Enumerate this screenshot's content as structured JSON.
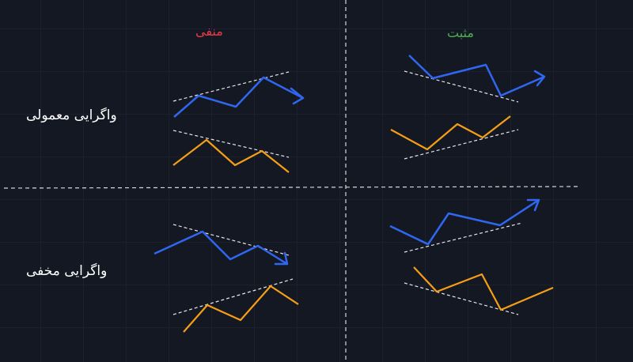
{
  "columns": {
    "negative": {
      "label": "منفی",
      "color": "#e83a47"
    },
    "positive": {
      "label": "مثبت",
      "color": "#4caf50"
    }
  },
  "rows": {
    "regular": {
      "label": "واگرایی معمولی"
    },
    "hidden": {
      "label": "واگرایی مخفی"
    }
  },
  "colors": {
    "background": "#141823",
    "grid": "#232837",
    "price_line": "#2f67f0",
    "indicator_line": "#f59e16",
    "trend_line": "#e6e6e6",
    "divider": "#d8d8d8"
  }
}
